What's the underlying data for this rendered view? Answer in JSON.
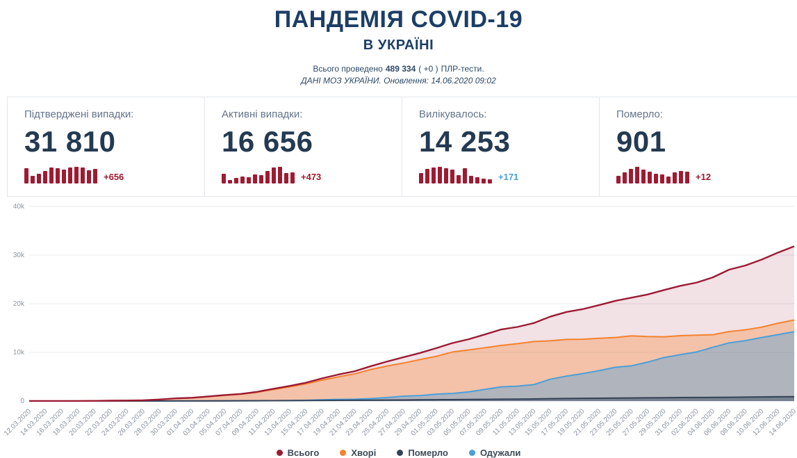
{
  "header": {
    "title": "ПАНДЕМІЯ COVID-19",
    "subtitle": "В УКРАЇНІ",
    "tests_prefix": "Всього проведено",
    "tests_count": "489 334",
    "tests_delta": "( +0 )",
    "tests_suffix": "ПЛР-тести.",
    "source_line": "ДАНІ МОЗ УКРАЇНИ. Оновлення: 14.06.2020 09:02"
  },
  "stats": {
    "spark_color": "#9e1b32",
    "cards": [
      {
        "label": "Підтверджені випадки:",
        "value": "31 810",
        "delta": "+656",
        "delta_color": "#9e1b32",
        "spark": [
          656,
          333,
          422,
          540,
          683,
          664,
          617,
          689,
          727,
          695,
          563,
          648
        ]
      },
      {
        "label": "Активні випадки:",
        "value": "16 656",
        "delta": "+473",
        "delta_color": "#9e1b32",
        "spark": [
          420,
          158,
          236,
          305,
          262,
          377,
          344,
          516,
          662,
          701,
          428,
          473
        ]
      },
      {
        "label": "Вилікувалось:",
        "value": "14 253",
        "delta": "+171",
        "delta_color": "#4a9fd9",
        "spark": [
          414,
          558,
          612,
          648,
          603,
          541,
          318,
          607,
          287,
          231,
          183,
          171
        ]
      },
      {
        "label": "Померло:",
        "value": "901",
        "delta": "+12",
        "delta_color": "#9e1b32",
        "spark": [
          8,
          11,
          15,
          17,
          14,
          12,
          10,
          9,
          7,
          11,
          13,
          12
        ]
      }
    ]
  },
  "chart_data": {
    "type": "area",
    "title": "",
    "xlabel": "",
    "ylabel": "",
    "ylim": [
      0,
      40000
    ],
    "yticks": [
      "0",
      "10k",
      "20k",
      "30k",
      "40k"
    ],
    "grid": true,
    "legend_position": "bottom",
    "x": [
      "12.03.2020",
      "14.03.2020",
      "16.03.2020",
      "18.03.2020",
      "20.03.2020",
      "22.03.2020",
      "24.03.2020",
      "26.03.2020",
      "28.03.2020",
      "30.03.2020",
      "01.04.2020",
      "03.04.2020",
      "05.04.2020",
      "07.04.2020",
      "09.04.2020",
      "11.04.2020",
      "13.04.2020",
      "15.04.2020",
      "17.04.2020",
      "19.04.2020",
      "21.04.2020",
      "23.04.2020",
      "25.04.2020",
      "27.04.2020",
      "29.04.2020",
      "01.05.2020",
      "03.05.2020",
      "05.05.2020",
      "07.05.2020",
      "09.05.2020",
      "11.05.2020",
      "13.05.2020",
      "15.05.2020",
      "17.05.2020",
      "19.05.2020",
      "21.05.2020",
      "23.05.2020",
      "25.05.2020",
      "27.05.2020",
      "29.05.2020",
      "31.05.2020",
      "02.06.2020",
      "04.06.2020",
      "06.06.2020",
      "08.06.2020",
      "10.06.2020",
      "12.06.2020",
      "14.06.2020"
    ],
    "series": [
      {
        "name": "Всього",
        "color": "#9b1b33",
        "values": [
          3,
          3,
          7,
          14,
          26,
          73,
          97,
          156,
          310,
          548,
          669,
          942,
          1225,
          1462,
          1892,
          2511,
          3102,
          3764,
          4662,
          5449,
          6125,
          7170,
          8125,
          9009,
          9866,
          10861,
          11913,
          12697,
          13691,
          14710,
          15232,
          16023,
          17330,
          18291,
          18876,
          19706,
          20580,
          21245,
          21905,
          22811,
          23672,
          24340,
          25411,
          26999,
          27856,
          29070,
          30506,
          31810
        ]
      },
      {
        "name": "Хворі",
        "color": "#f5822d",
        "values": [
          2,
          2,
          6,
          12,
          23,
          69,
          91,
          146,
          300,
          527,
          642,
          900,
          1168,
          1389,
          1790,
          2359,
          2912,
          3513,
          4291,
          4966,
          5597,
          6479,
          7217,
          7797,
          8513,
          9176,
          10077,
          10506,
          10955,
          11425,
          11781,
          12225,
          12381,
          12661,
          12696,
          12900,
          13046,
          13388,
          13252,
          13198,
          13426,
          13535,
          13622,
          14273,
          14634,
          15178,
          15988,
          16656
        ]
      },
      {
        "name": "Померло",
        "color": "#344258",
        "values": [
          1,
          1,
          1,
          2,
          3,
          3,
          3,
          5,
          5,
          13,
          17,
          23,
          32,
          45,
          57,
          73,
          93,
          108,
          125,
          136,
          161,
          187,
          201,
          220,
          250,
          272,
          288,
          316,
          340,
          376,
          391,
          425,
          476,
          514,
          548,
          579,
          605,
          623,
          658,
          679,
          708,
          727,
          747,
          771,
          810,
          837,
          870,
          901
        ]
      },
      {
        "name": "Одужали",
        "color": "#4a9fd9",
        "values": [
          0,
          0,
          0,
          0,
          0,
          1,
          3,
          5,
          5,
          8,
          10,
          19,
          25,
          28,
          45,
          79,
          97,
          143,
          246,
          347,
          367,
          504,
          707,
          992,
          1103,
          1413,
          1548,
          1875,
          2396,
          2909,
          3060,
          3373,
          4473,
          5116,
          5632,
          6227,
          6929,
          7234,
          7995,
          8934,
          9538,
          10078,
          11042,
          11955,
          12412,
          13055,
          13648,
          14253
        ]
      }
    ]
  }
}
